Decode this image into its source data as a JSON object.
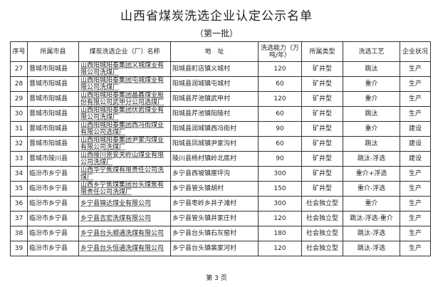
{
  "title": "山西省煤炭洗选企业认定公示名单",
  "subtitle": "（第一批）",
  "columns": [
    "序号",
    "所属市县",
    "煤炭洗选企业（厂）名称",
    "地　址",
    "洗选能力（万吨/年）",
    "所属类型",
    "洗选工艺",
    "企业状况"
  ],
  "rows": [
    [
      "27",
      "晋城市阳城县",
      "山西阳城阳泰集团义城煤业有限公司洗煤厂",
      "阳城县町店镇义城村",
      "120",
      "矿井型",
      "跳汰",
      "生产"
    ],
    [
      "28",
      "晋城市阳城县",
      "山西阳城阳泰集团屯城煤业有限公司洗煤厂",
      "阳城县润城镇屯城村",
      "60",
      "矿井型",
      "重介",
      "生产"
    ],
    [
      "29",
      "晋城市阳城县",
      "山西阳城阳泰集团晶鑫煤业股份有限公司武甲分公司选煤厂",
      "阳城县芹池镇武甲村",
      "120",
      "矿井型",
      "重介",
      "生产"
    ],
    [
      "30",
      "晋城市阳城县",
      "山西阳城阳泰集团伏岩煤业有限公司洗煤厂",
      "阳城县芹池镇阳陵村",
      "60",
      "矿井型",
      "跳汰",
      "生产"
    ],
    [
      "31",
      "晋城市阳城县",
      "山西阳城阳泰集团西冯街煤业有限公司选煤厂",
      "阳城县润城镇西冯街村",
      "90",
      "矿井型",
      "重介",
      "建设"
    ],
    [
      "32",
      "晋城市阳城县",
      "山西阳城阳泰集团尹家沟煤业有限公司洗煤厂",
      "阳城县凤城镇尹家沟村",
      "60",
      "矿井型",
      "跳汰",
      "建设"
    ],
    [
      "33",
      "晋城市陵川县",
      "山西陵川崇安关岭山煤业有限公司洗煤厂",
      "陵川县杨村镇岭北底村",
      "90",
      "矿井型",
      "跳汰-浮选",
      "建设"
    ],
    [
      "34",
      "临汾市乡宁县",
      "山西华宁焦煤有限责任公司洗煤厂",
      "乡宁县西坡镇崖坪沟",
      "300",
      "矿井型",
      "重介+浮选",
      "生产"
    ],
    [
      "35",
      "临汾市乡宁县",
      "山西乡宁焦煤集团台头煤焦有限责任公司洗煤厂",
      "乡宁县管头镇胡村",
      "150",
      "矿井型",
      "重介-浮选",
      "生产"
    ],
    [
      "36",
      "临汾市乡宁县",
      "乡宁县锦达煤业有限公司",
      "乡宁县枣岭乡井子滩村",
      "300",
      "社会独立型",
      "重介",
      "生产"
    ],
    [
      "37",
      "临汾市乡宁县",
      "乡宁县吉宏洗煤有限公司",
      "乡宁县管头镇井家庄村",
      "120",
      "社会独立型",
      "跳汰-浮选-重介",
      "生产"
    ],
    [
      "38",
      "临汾市乡宁县",
      "乡宁县台头顺通洗煤有限公司",
      "乡宁县台头镇石灰窑村",
      "180",
      "社会独立型",
      "跳汰-浮选",
      "生产"
    ],
    [
      "39",
      "临汾市乡宁县",
      "乡宁县台头恒通洗煤有限公司",
      "乡宁县台头镇裴家河村",
      "120",
      "社会独立型",
      "跳汰-浮选",
      "生产"
    ]
  ],
  "footer": "第 3 页"
}
